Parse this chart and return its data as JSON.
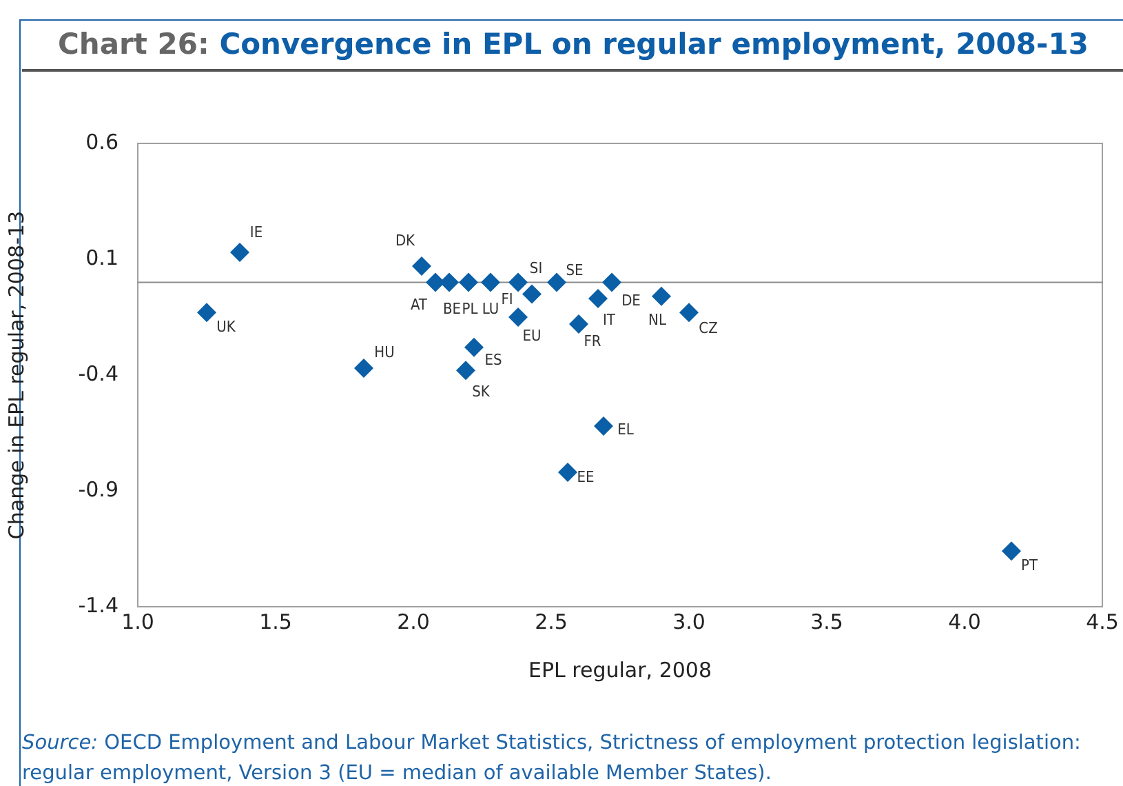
{
  "chart_data": {
    "type": "scatter",
    "title": "Chart 26: Convergence in EPL on regular employment, 2008-13",
    "xlabel": "EPL regular, 2008",
    "ylabel": "Change in EPL regular, 2008-13",
    "marker": "diamond",
    "grid": false,
    "legend": false,
    "x": [
      1.37,
      1.25,
      2.03,
      2.08,
      2.13,
      2.2,
      2.28,
      2.38,
      2.43,
      2.38,
      2.52,
      2.72,
      2.67,
      2.6,
      2.9,
      3.0,
      1.82,
      2.22,
      2.19,
      2.69,
      2.56,
      4.17
    ],
    "series": [
      {
        "color": "#0a5fa6",
        "values": [
          0.13,
          -0.13,
          0.07,
          0.0,
          0.0,
          0.0,
          0.0,
          0.0,
          -0.05,
          -0.15,
          0.0,
          0.0,
          -0.07,
          -0.18,
          -0.06,
          -0.13,
          -0.37,
          -0.28,
          -0.38,
          -0.62,
          -0.82,
          -1.16
        ]
      }
    ],
    "xlim": [
      1.0,
      4.5
    ],
    "xticks": [
      {
        "value": 1.0,
        "label": "1.0"
      },
      {
        "value": 1.5,
        "label": "1.5"
      },
      {
        "value": 2.0,
        "label": "2.0"
      },
      {
        "value": 2.5,
        "label": "2.5"
      },
      {
        "value": 3.0,
        "label": "3.0"
      },
      {
        "value": 3.5,
        "label": "3.5"
      },
      {
        "value": 4.0,
        "label": "4.0"
      },
      {
        "value": 4.5,
        "label": "4.5"
      }
    ],
    "ylim": [
      -1.4,
      0.6
    ],
    "yticks": [
      -1.4,
      -0.9,
      -0.4,
      0.1,
      0.6
    ],
    "ref_lines": [
      {
        "axis": "y",
        "value": 0,
        "color": "#8c8c8c"
      }
    ],
    "annotations": [
      {
        "text": "IE",
        "x": 1.37,
        "y": 0.13
      },
      {
        "text": "UK",
        "x": 1.25,
        "y": -0.13
      },
      {
        "text": "DK",
        "x": 2.03,
        "y": 0.07
      },
      {
        "text": "AT",
        "x": 2.08,
        "y": 0.0
      },
      {
        "text": "BE",
        "x": 2.13,
        "y": 0.0
      },
      {
        "text": "PL",
        "x": 2.2,
        "y": 0.0
      },
      {
        "text": "LU",
        "x": 2.28,
        "y": 0.0
      },
      {
        "text": "FI",
        "x": 2.38,
        "y": 0.0
      },
      {
        "text": "SI",
        "x": 2.43,
        "y": -0.05
      },
      {
        "text": "EU",
        "x": 2.38,
        "y": -0.15
      },
      {
        "text": "SE",
        "x": 2.52,
        "y": 0.0
      },
      {
        "text": "DE",
        "x": 2.72,
        "y": 0.0
      },
      {
        "text": "IT",
        "x": 2.67,
        "y": -0.07
      },
      {
        "text": "FR",
        "x": 2.6,
        "y": -0.18
      },
      {
        "text": "NL",
        "x": 2.9,
        "y": -0.06
      },
      {
        "text": "CZ",
        "x": 3.0,
        "y": -0.13
      },
      {
        "text": "HU",
        "x": 1.82,
        "y": -0.37
      },
      {
        "text": "ES",
        "x": 2.22,
        "y": -0.28
      },
      {
        "text": "SK",
        "x": 2.19,
        "y": -0.38
      },
      {
        "text": "EL",
        "x": 2.69,
        "y": -0.62
      },
      {
        "text": "EE",
        "x": 2.56,
        "y": -0.82
      },
      {
        "text": "PT",
        "x": 4.17,
        "y": -1.16
      },
      "Source: OECD Employment and Labour Market Statistics, Strictness of employment protection legislation: regular employment, Version 3 (EU = median of available Member States)."
    ]
  }
}
